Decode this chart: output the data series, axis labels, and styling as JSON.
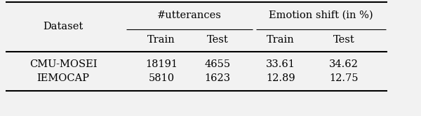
{
  "col_headers_row1_left": "#utterances",
  "col_headers_row1_right": "Emotion shift (in %)",
  "col_headers_row2": [
    "Train",
    "Test",
    "Train",
    "Test"
  ],
  "dataset_label": "Dataset",
  "rows": [
    [
      "CMU-MOSEI",
      "18191",
      "4655",
      "33.61",
      "34.62"
    ],
    [
      "IEMOCAP",
      "5810",
      "1623",
      "12.89",
      "12.75"
    ]
  ],
  "background_color": "#f2f2f2",
  "text_color": "#000000",
  "font_size": 10.5
}
